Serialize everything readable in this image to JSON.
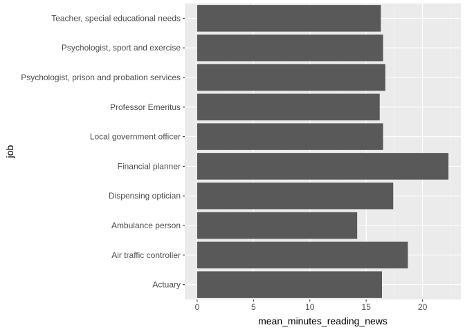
{
  "colors": {
    "panel_background": "#ebebeb",
    "grid_major": "#ffffff",
    "grid_minor": "#f5f5f5",
    "bar_fill": "#595959",
    "tick_text": "#4d4d4d",
    "tick_mark": "#333333"
  },
  "chart_data": {
    "type": "bar",
    "orientation": "horizontal",
    "categories": [
      "Teacher, special educational needs",
      "Psychologist, sport and exercise",
      "Psychologist, prison and probation services",
      "Professor Emeritus",
      "Local government officer",
      "Financial planner",
      "Dispensing optician",
      "Ambulance person",
      "Air traffic controller",
      "Actuary"
    ],
    "values": [
      16.3,
      16.5,
      16.7,
      16.2,
      16.5,
      22.3,
      17.4,
      14.2,
      18.7,
      16.4
    ],
    "xlabel": "mean_minutes_reading_news",
    "ylabel": "job",
    "xlim": [
      -1.1,
      23.4
    ],
    "xticks": [
      0,
      5,
      10,
      15,
      20
    ],
    "xtick_labels": [
      "0",
      "5",
      "10",
      "15",
      "20"
    ],
    "grid": true,
    "legend": "none"
  }
}
